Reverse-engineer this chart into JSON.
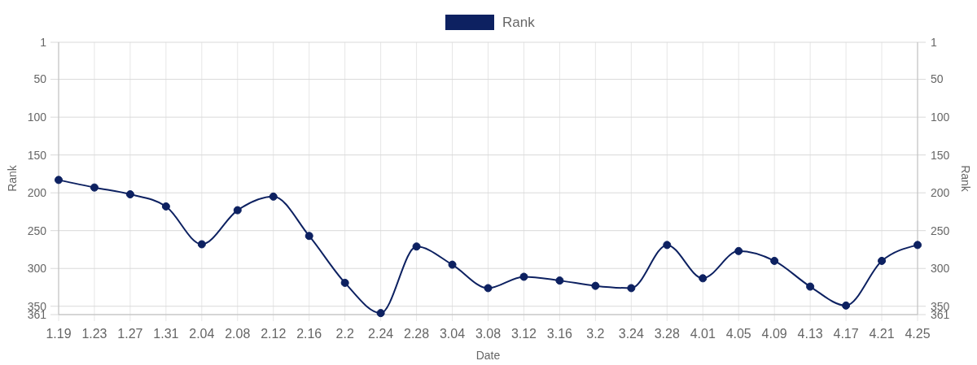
{
  "chart_data": {
    "type": "line",
    "legend": "top",
    "xlabel": "Date",
    "ylabel": "Rank",
    "y2label": "Rank",
    "categories": [
      "1.19",
      "1.23",
      "1.27",
      "1.31",
      "2.04",
      "2.08",
      "2.12",
      "2.16",
      "2.2",
      "2.24",
      "2.28",
      "3.04",
      "3.08",
      "3.12",
      "3.16",
      "3.2",
      "3.24",
      "3.28",
      "4.01",
      "4.05",
      "4.09",
      "4.13",
      "4.17",
      "4.21",
      "4.25"
    ],
    "series": [
      {
        "name": "Rank",
        "color": "#0d2161",
        "values": [
          183,
          193,
          202,
          218,
          268,
          223,
          205,
          257,
          319,
          359,
          271,
          295,
          326,
          311,
          316,
          323,
          326,
          269,
          313,
          277,
          290,
          324,
          349,
          290,
          269
        ]
      }
    ],
    "ylim": [
      361,
      1
    ],
    "yticks": [
      1,
      50,
      100,
      150,
      200,
      250,
      300,
      350,
      361
    ],
    "y2lim": [
      361,
      1
    ],
    "y2ticks": [
      1,
      50,
      100,
      150,
      200,
      250,
      300,
      350,
      361
    ],
    "grid": true,
    "marker": "circle",
    "line_style": "solid"
  }
}
